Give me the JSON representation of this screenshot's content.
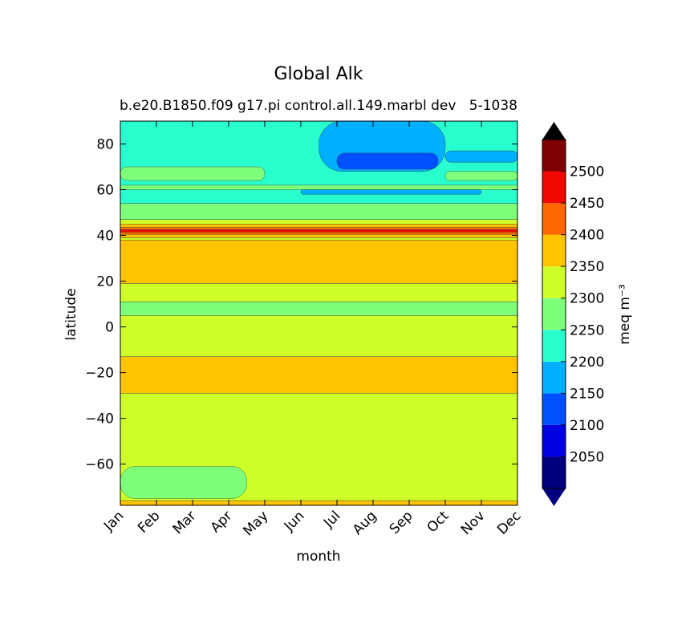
{
  "chart_data": {
    "type": "heatmap",
    "title": "Global Alk",
    "subtitle_left": "b.e20.B1850.f09 g17.pi control.all.149.marbl dev",
    "subtitle_right": "5-1038",
    "xlabel": "month",
    "ylabel": "latitude",
    "x_categories": [
      "Jan",
      "Feb",
      "Mar",
      "Apr",
      "May",
      "Jun",
      "Jul",
      "Aug",
      "Sep",
      "Oct",
      "Nov",
      "Dec"
    ],
    "y_ticks": [
      80,
      60,
      40,
      20,
      0,
      -20,
      -40,
      -60
    ],
    "ylim": [
      -78,
      90
    ],
    "colorbar": {
      "label": "meq m⁻³",
      "levels": [
        2000,
        2050,
        2100,
        2150,
        2200,
        2250,
        2300,
        2350,
        2400,
        2450,
        2500,
        2550
      ],
      "tick_labels": [
        "2050",
        "2100",
        "2150",
        "2200",
        "2250",
        "2300",
        "2350",
        "2400",
        "2450",
        "2500"
      ],
      "colors": [
        "#00007f",
        "#0000e0",
        "#0050ff",
        "#00b0ff",
        "#29ffce",
        "#7dff7a",
        "#ceff29",
        "#ffc400",
        "#ff6800",
        "#f10800",
        "#7f0000"
      ],
      "extend": "both"
    },
    "bands": [
      {
        "lat_from": -78,
        "lat_to": -76,
        "value": 2350
      },
      {
        "lat_from": -76,
        "lat_to": -29,
        "value": 2300
      },
      {
        "lat_from": -29,
        "lat_to": -13,
        "value": 2350
      },
      {
        "lat_from": -13,
        "lat_to": 5,
        "value": 2300
      },
      {
        "lat_from": 5,
        "lat_to": 11,
        "value": 2250
      },
      {
        "lat_from": 11,
        "lat_to": 19,
        "value": 2300
      },
      {
        "lat_from": 19,
        "lat_to": 38,
        "value": 2350
      },
      {
        "lat_from": 38,
        "lat_to": 39,
        "value": 2300
      },
      {
        "lat_from": 39,
        "lat_to": 40.5,
        "value": 2350
      },
      {
        "lat_from": 40.5,
        "lat_to": 41.5,
        "value": 2400
      },
      {
        "lat_from": 41.5,
        "lat_to": 42.5,
        "value": 2450
      },
      {
        "lat_from": 42.5,
        "lat_to": 43.5,
        "value": 2400
      },
      {
        "lat_from": 43.5,
        "lat_to": 45,
        "value": 2350
      },
      {
        "lat_from": 45,
        "lat_to": 47,
        "value": 2300
      },
      {
        "lat_from": 47,
        "lat_to": 54,
        "value": 2250
      },
      {
        "lat_from": 54,
        "lat_to": 90,
        "value": 2200
      }
    ],
    "patches": [
      {
        "month_from": 1,
        "month_to": 4.5,
        "lat_from": -75,
        "lat_to": -61,
        "value": 2250
      },
      {
        "month_from": 1,
        "month_to": 12,
        "lat_from": 60,
        "lat_to": 62,
        "value": 2250
      },
      {
        "month_from": 1,
        "month_to": 5,
        "lat_from": 64,
        "lat_to": 70,
        "value": 2250
      },
      {
        "month_from": 10,
        "month_to": 12,
        "lat_from": 64,
        "lat_to": 68,
        "value": 2250
      },
      {
        "month_from": 6,
        "month_to": 11,
        "lat_from": 58,
        "lat_to": 60,
        "value": 2150
      },
      {
        "month_from": 6.5,
        "month_to": 10,
        "lat_from": 68,
        "lat_to": 90,
        "value": 2150
      },
      {
        "month_from": 10,
        "month_to": 12,
        "lat_from": 72,
        "lat_to": 77,
        "value": 2150
      },
      {
        "month_from": 7,
        "month_to": 9.8,
        "lat_from": 69,
        "lat_to": 76,
        "value": 2100
      }
    ]
  }
}
